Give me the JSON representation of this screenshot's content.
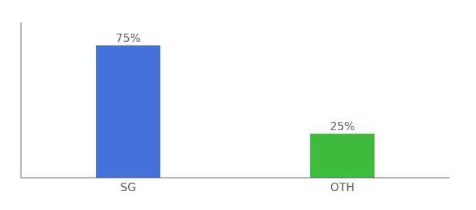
{
  "chart_data": {
    "type": "bar",
    "categories": [
      "SG",
      "OTH"
    ],
    "values": [
      75,
      25
    ],
    "value_labels": [
      "75%",
      "25%"
    ],
    "colors": [
      "#4472db",
      "#3dbb3d"
    ],
    "ylim": [
      0,
      88
    ],
    "data_labels": true,
    "tick_labels": "x",
    "grid": false
  }
}
